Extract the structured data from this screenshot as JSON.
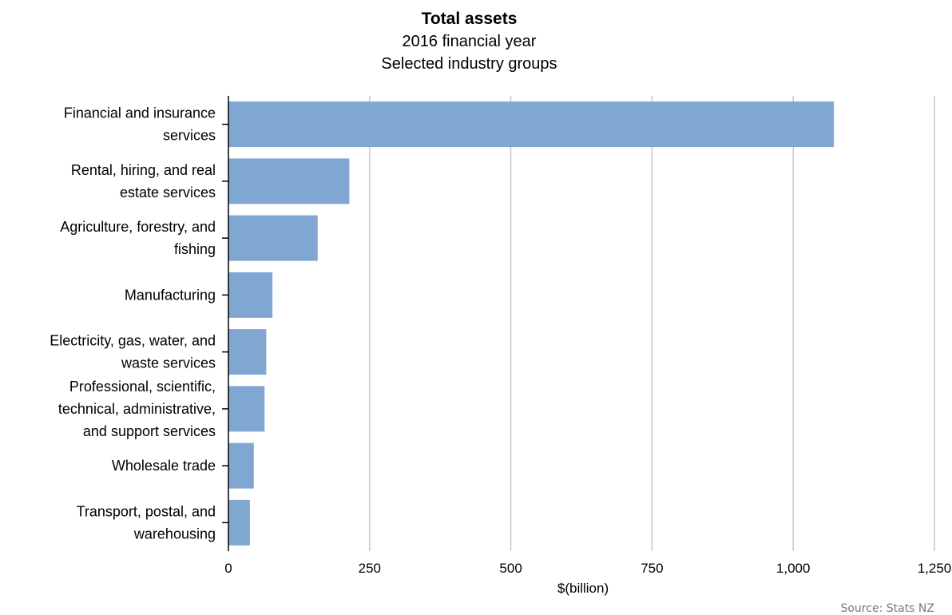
{
  "chart_data": {
    "type": "bar",
    "orientation": "horizontal",
    "title": "Total assets",
    "subtitle_lines": [
      "2016 financial year",
      "Selected industry groups"
    ],
    "xlabel": "$(billion)",
    "xlim": [
      0,
      1250
    ],
    "xticks": [
      0,
      250,
      500,
      750,
      1000,
      1250
    ],
    "xtick_labels": [
      "0",
      "250",
      "500",
      "750",
      "1,000",
      "1,250"
    ],
    "grid": true,
    "bar_color": "#80a6d2",
    "categories": [
      [
        "Financial and insurance",
        "services"
      ],
      [
        "Rental, hiring, and real",
        "estate services"
      ],
      [
        "Agriculture, forestry, and",
        "fishing"
      ],
      [
        "Manufacturing"
      ],
      [
        "Electricity, gas, water, and",
        "waste services"
      ],
      [
        "Professional, scientific,",
        "technical, administrative,",
        "and support services"
      ],
      [
        "Wholesale trade"
      ],
      [
        "Transport, postal, and",
        "warehousing"
      ]
    ],
    "values": [
      1072,
      214,
      158,
      78,
      67,
      64,
      45,
      38
    ]
  },
  "source": "Source: Stats NZ"
}
